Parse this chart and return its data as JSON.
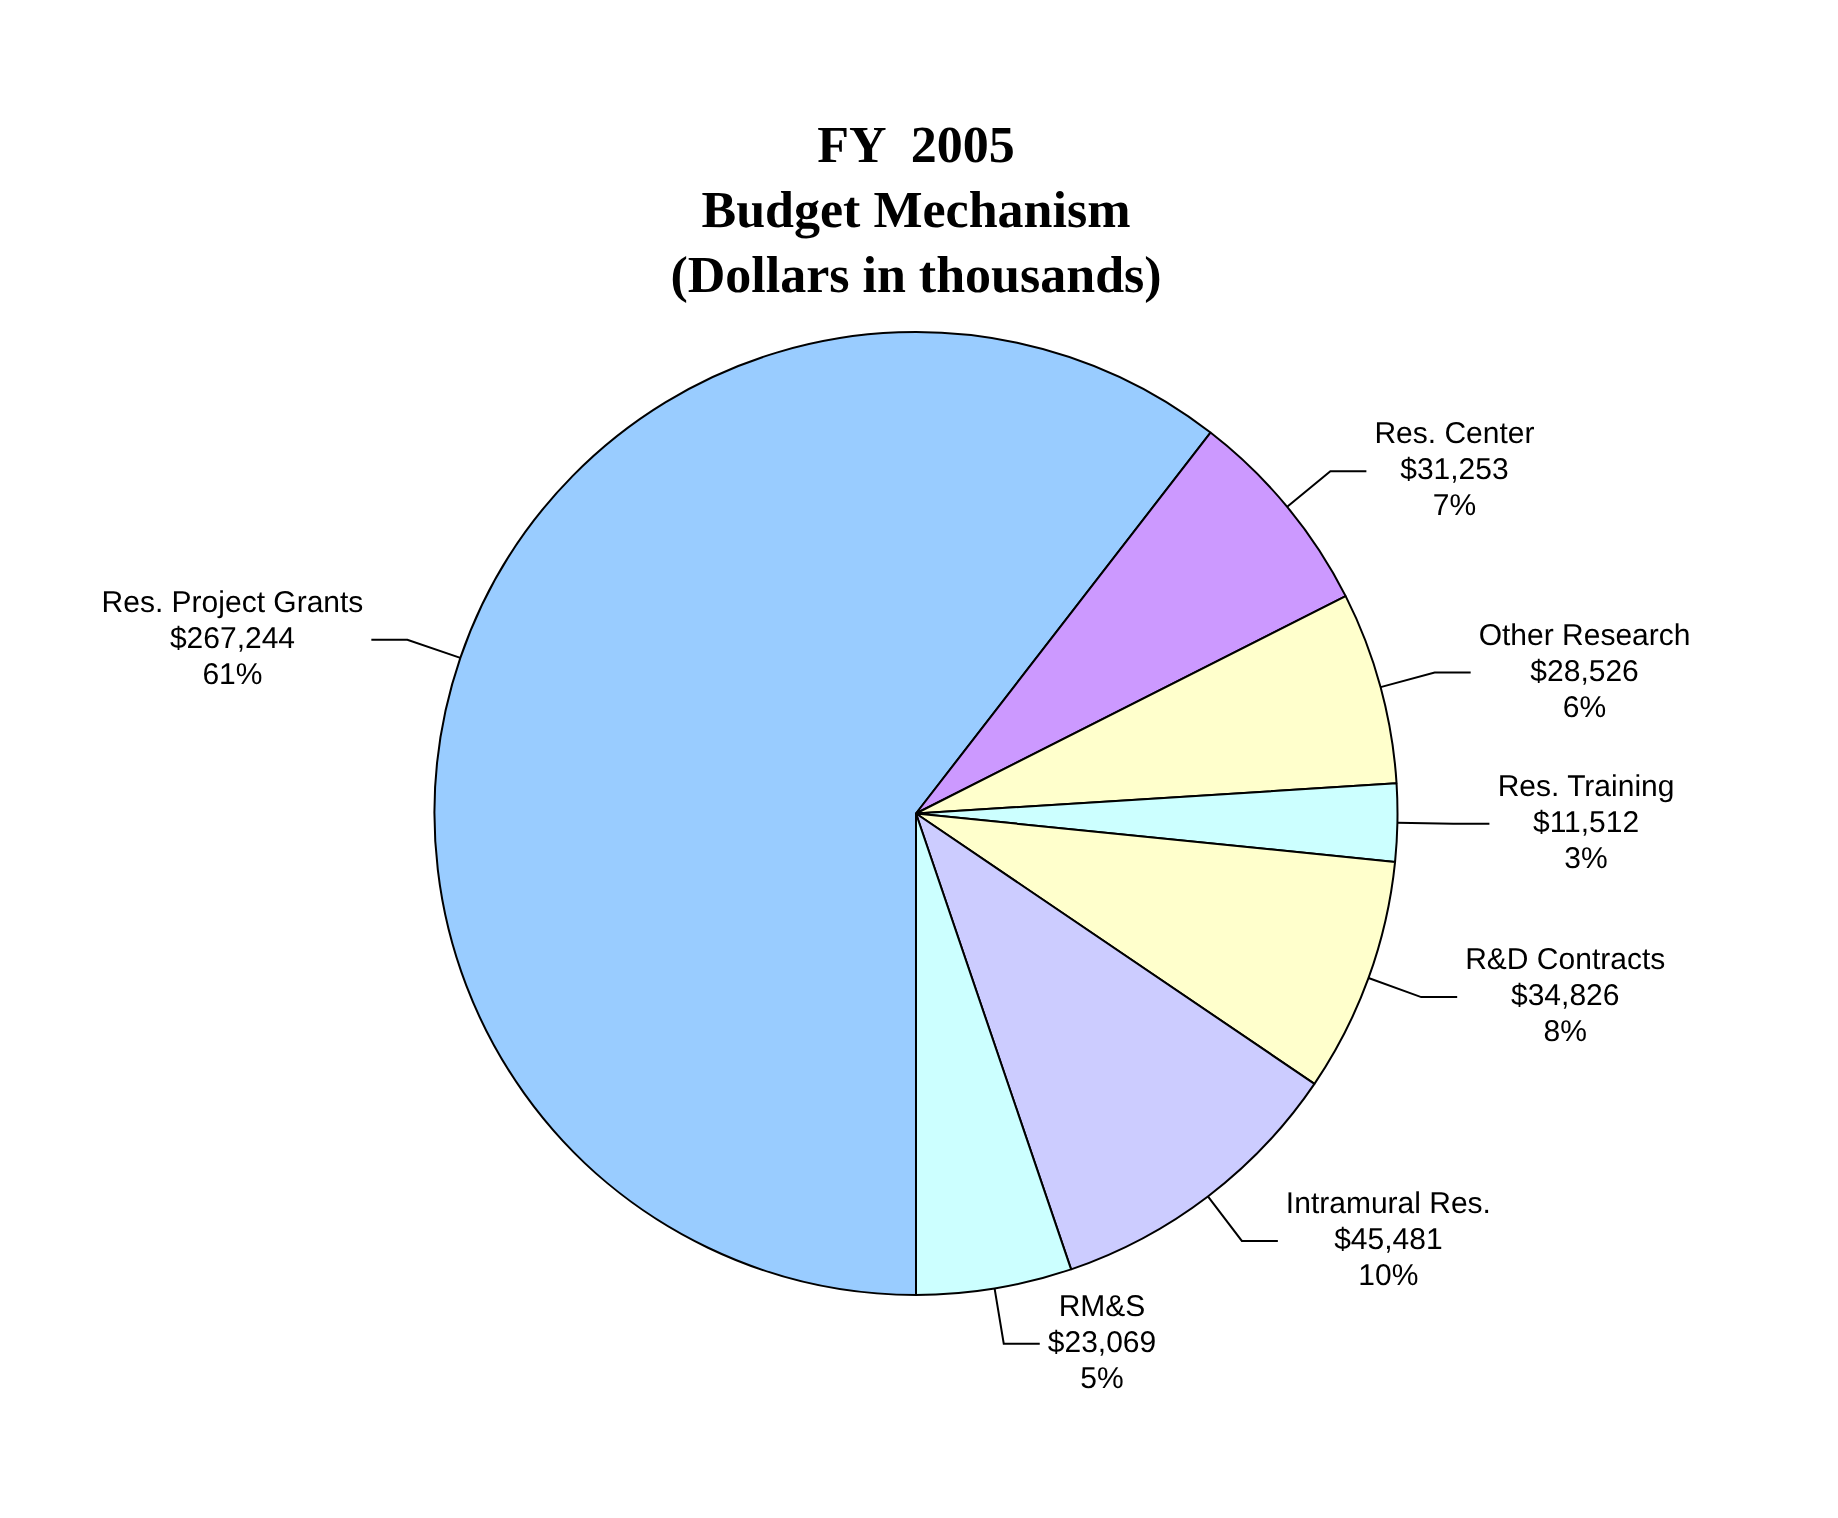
{
  "chart_data": {
    "type": "pie",
    "title": "FY  2005\nBudget Mechanism\n(Dollars in thousands)",
    "categories": [
      "Res. Project Grants",
      "Res. Center",
      "Other Research",
      "Res. Training",
      "R&D Contracts",
      "Intramural Res.",
      "RM&S"
    ],
    "values": [
      267244,
      31253,
      28526,
      11512,
      34826,
      45481,
      23069
    ],
    "colors": [
      "#99ccff",
      "#cc99ff",
      "#ffffcc",
      "#ccffff",
      "#ffffcc",
      "#ccccff",
      "#ccffff"
    ],
    "value_labels": [
      "$267,244\n61%",
      "$31,253\n7%",
      "$28,526\n6%",
      "$11,512\n3%",
      "$34,826\n8%",
      "$45,481\n10%",
      "$23,069\n5%"
    ],
    "legend": false
  }
}
